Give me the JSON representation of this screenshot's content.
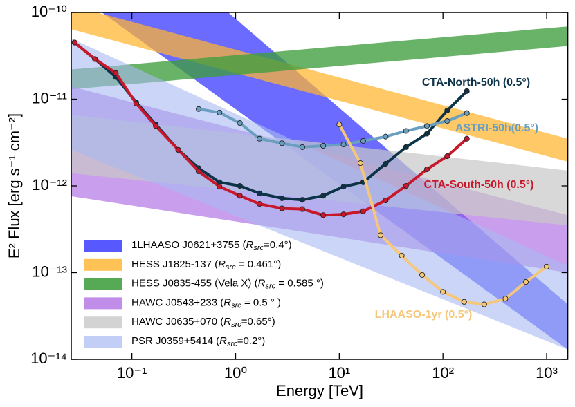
{
  "chart_data": {
    "type": "line",
    "x_label": "Energy [TeV]",
    "y_label": "E² Flux [erg s⁻¹ cm⁻²]",
    "xlog": true,
    "ylog": true,
    "xlim": [
      0.026,
      1600
    ],
    "ylim": [
      1e-14,
      1e-10
    ],
    "xticks": [
      {
        "value": 0.1,
        "label": "10⁻¹"
      },
      {
        "value": 1,
        "label": "10⁰"
      },
      {
        "value": 10,
        "label": "10¹"
      },
      {
        "value": 100,
        "label": "10²"
      },
      {
        "value": 1000,
        "label": "10³"
      }
    ],
    "yticks": [
      {
        "value": 1e-14,
        "label": "10⁻¹⁴"
      },
      {
        "value": 1e-13,
        "label": "10⁻¹³"
      },
      {
        "value": 1e-12,
        "label": "10⁻¹²"
      },
      {
        "value": 1e-11,
        "label": "10⁻¹¹"
      },
      {
        "value": 1e-10,
        "label": "10⁻¹⁰"
      }
    ],
    "legend": "lower left",
    "bands": [
      {
        "name_parts": [
          "1LHAASO J0621+3755 (",
          "R",
          "src",
          "=0.4°)"
        ],
        "color": "#4a4aff",
        "opacity": 0.82,
        "x": [
          0.026,
          1600
        ],
        "upper": [
          3.6e-09,
          4.3e-14
        ],
        "lower": [
          1.8e-10,
          1.3e-14
        ]
      },
      {
        "name_parts": [
          "HESS J1825-137 (",
          "R",
          "src",
          " = 0.461°)"
        ],
        "color": "#ffb42e",
        "opacity": 0.72,
        "x": [
          0.026,
          1600
        ],
        "upper": [
          1.2e-10,
          3.5e-12
        ],
        "lower": [
          6.4e-11,
          1.9e-12
        ]
      },
      {
        "name_parts": [
          "HESS J0835-455 (Vela X) (",
          "R",
          "src",
          " = 0.585 °)"
        ],
        "color": "#3f9e3f",
        "opacity": 0.78,
        "x": [
          0.026,
          1600
        ],
        "upper": [
          2.2e-11,
          6.9e-11
        ],
        "lower": [
          1.3e-11,
          4.1e-11
        ]
      },
      {
        "name_parts": [
          "HAWC J0543+233 (",
          "R",
          "src",
          " =  0.5 ° )"
        ],
        "color": "#a862e0",
        "opacity": 0.62,
        "x": [
          0.026,
          1600
        ],
        "upper": [
          1.4e-11,
          4.6e-13
        ],
        "lower": [
          7.6e-13,
          1e-13
        ]
      },
      {
        "name_parts": [
          "HAWC J0635+070 (",
          "R",
          "src",
          "=0.65°)"
        ],
        "color": "#c8c8c8",
        "opacity": 0.7,
        "x": [
          0.026,
          1600
        ],
        "upper": [
          6.6e-12,
          1.5e-12
        ],
        "lower": [
          1.4e-12,
          3.5e-13
        ]
      },
      {
        "name_parts": [
          "PSR J0359+5414 (",
          "R",
          "src",
          "=0.2°)"
        ],
        "color": "#a9b9f2",
        "opacity": 0.6,
        "x": [
          0.026,
          1600
        ],
        "upper": [
          5e-11,
          1.2e-13
        ],
        "lower": [
          2.6e-12,
          1.3e-14
        ]
      }
    ],
    "series": [
      {
        "label": "CTA-North-50h (0.5°)",
        "color": "#0d3349",
        "x": [
          0.028,
          0.044,
          0.07,
          0.11,
          0.17,
          0.28,
          0.44,
          0.7,
          1.1,
          1.7,
          2.8,
          4.4,
          7,
          11,
          17,
          28,
          44,
          70,
          110,
          170
        ],
        "values": [
          4.5e-11,
          2.9e-11,
          1.8e-11,
          9.2e-12,
          5.1e-12,
          2.6e-12,
          1.6e-12,
          1.1e-12,
          1e-12,
          8.2e-13,
          7.2e-13,
          6.9e-13,
          7.7e-13,
          9.8e-13,
          1.1e-12,
          1.8e-12,
          2.8e-12,
          4e-12,
          7.4e-12,
          1.24e-11
        ]
      },
      {
        "label": "ASTRI-50h(0.5°)",
        "color": "#6a9fc0",
        "x": [
          0.44,
          0.7,
          1.1,
          1.7,
          2.8,
          4.4,
          7,
          11,
          17,
          28,
          44,
          70,
          110,
          170
        ],
        "values": [
          7.7e-12,
          7e-12,
          5.3e-12,
          3.5e-12,
          3.1e-12,
          2.8e-12,
          2.9e-12,
          3e-12,
          3.3e-12,
          3.7e-12,
          4.3e-12,
          4.9e-12,
          5.6e-12,
          6.9e-12
        ]
      },
      {
        "label": "CTA-South-50h (0.5°)",
        "color": "#c8182c",
        "x": [
          0.028,
          0.044,
          0.07,
          0.11,
          0.17,
          0.28,
          0.44,
          0.7,
          1.1,
          1.7,
          2.8,
          4.4,
          7,
          11,
          17,
          28,
          44,
          70,
          110,
          170
        ],
        "values": [
          4.5e-11,
          2.9e-11,
          2e-11,
          8.9e-12,
          4.9e-12,
          2.6e-12,
          1.47e-12,
          9.8e-13,
          7.7e-13,
          6.2e-13,
          5.5e-13,
          5.4e-13,
          4.6e-13,
          4.7e-13,
          5.1e-13,
          6.8e-13,
          1e-12,
          1.55e-12,
          2.2e-12,
          3.5e-12
        ]
      },
      {
        "label": "LHAASO-1yr (0.5°)",
        "color": "#f5c77a",
        "x": [
          10,
          16,
          25,
          40,
          63,
          100,
          160,
          250,
          400,
          630,
          1000
        ],
        "values": [
          5.1e-12,
          1.83e-12,
          2.7e-13,
          1.57e-13,
          9.4e-14,
          6e-14,
          4.6e-14,
          4.3e-14,
          5e-14,
          7.8e-14,
          1.17e-13
        ]
      }
    ]
  }
}
